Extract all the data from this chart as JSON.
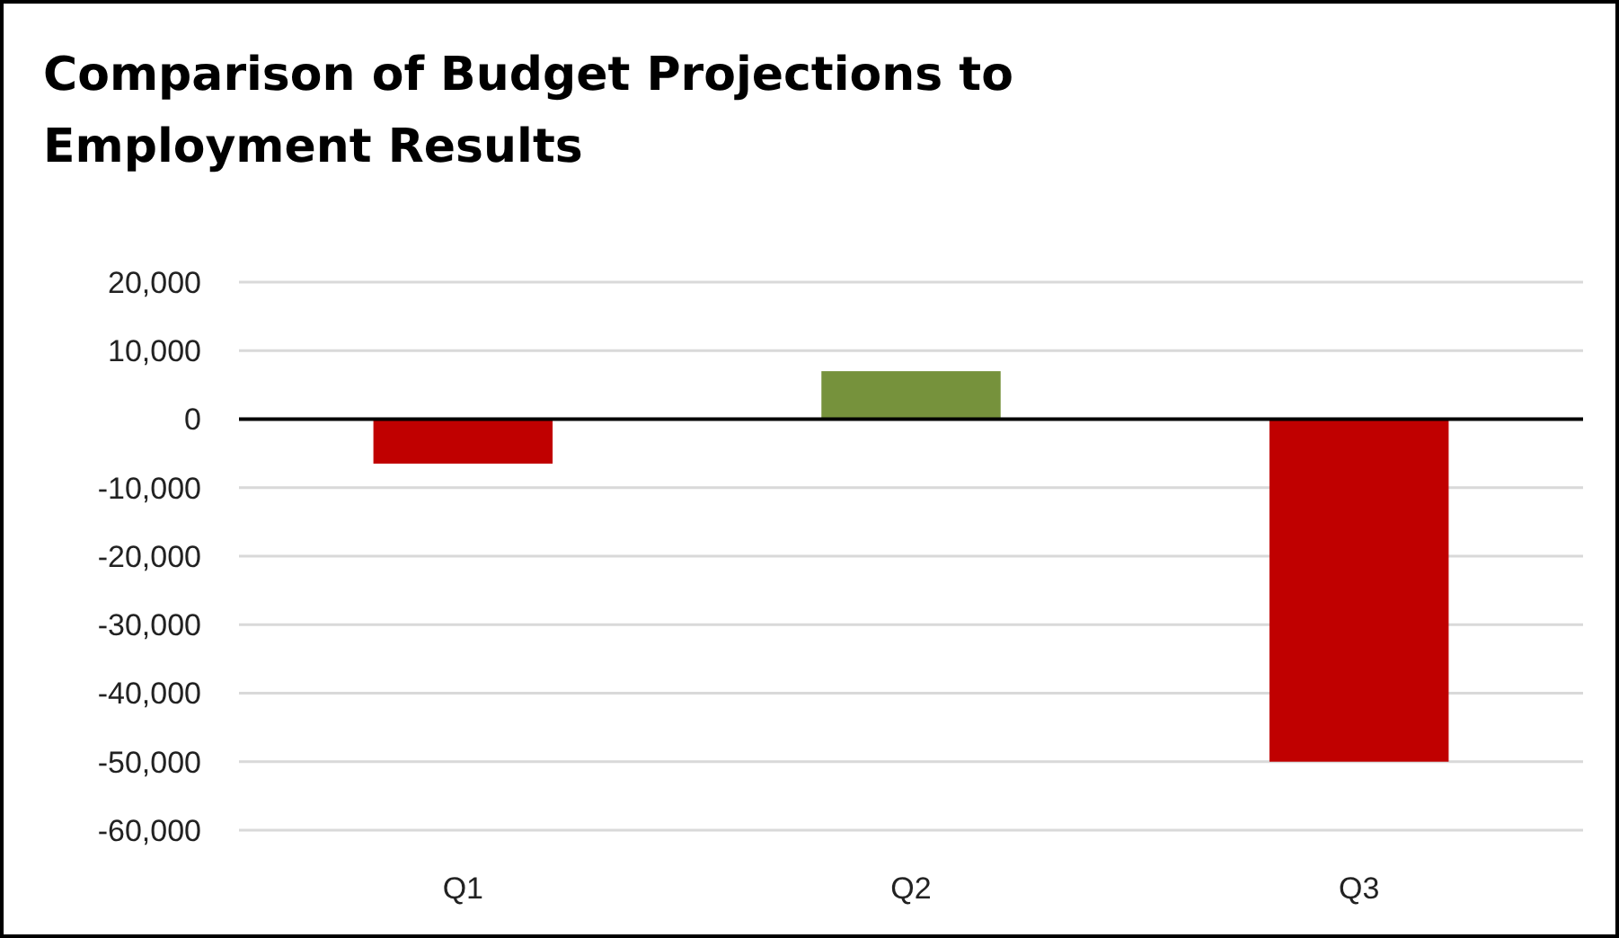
{
  "chart_data": {
    "type": "bar",
    "title": "Comparison of Budget Projections to Employment Results",
    "categories": [
      "Q1",
      "Q2",
      "Q3"
    ],
    "values": [
      -6500,
      7000,
      -50000
    ],
    "colors": [
      "#c00000",
      "#76923c",
      "#c00000"
    ],
    "ylim": [
      -60000,
      20000
    ],
    "yticks": [
      {
        "value": -60000,
        "label": "-60,000"
      },
      {
        "value": -50000,
        "label": "-50,000"
      },
      {
        "value": -40000,
        "label": "-40,000"
      },
      {
        "value": -30000,
        "label": "-30,000"
      },
      {
        "value": -20000,
        "label": "-20,000"
      },
      {
        "value": -10000,
        "label": "-10,000"
      },
      0,
      {
        "value": 10000,
        "label": "10,000"
      },
      {
        "value": 20000,
        "label": "20,000"
      }
    ],
    "grid": "y"
  }
}
